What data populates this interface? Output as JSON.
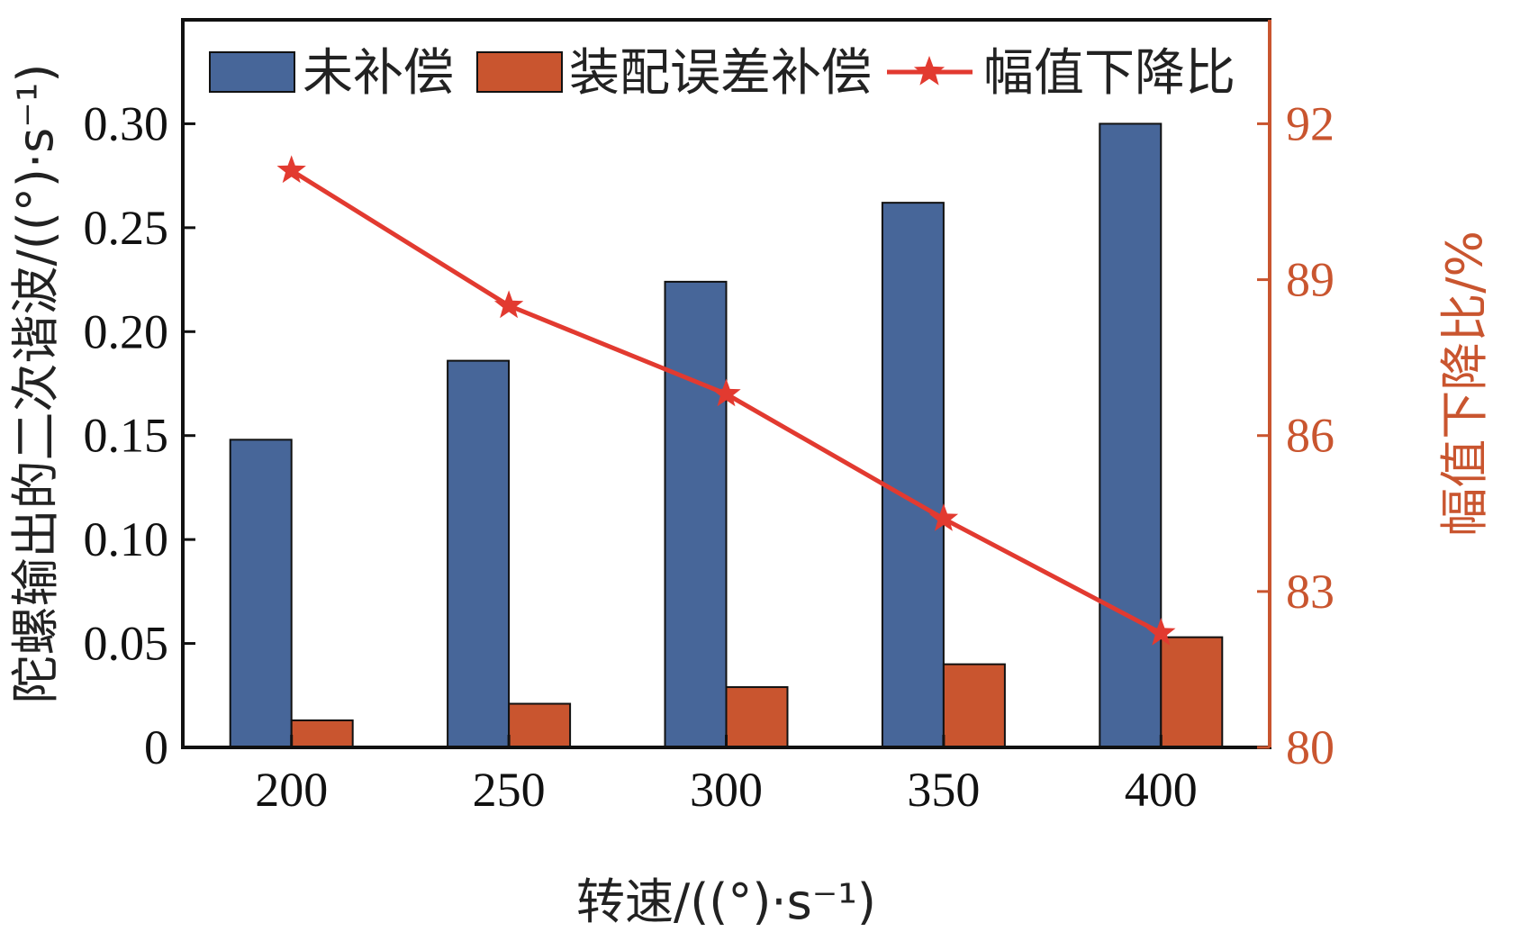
{
  "chart_data": {
    "type": "bar",
    "xlabel": "转速/((°)·s⁻¹)",
    "ylabel": "陀螺输出的二次谐波/((°)·s⁻¹)",
    "y2label": "幅值下降比/%",
    "categories": [
      "200",
      "250",
      "300",
      "350",
      "400"
    ],
    "ylim": [
      0,
      0.35
    ],
    "yticks": [
      "0",
      "0.05",
      "0.10",
      "0.15",
      "0.20",
      "0.25",
      "0.30"
    ],
    "y2lim": [
      80,
      94
    ],
    "y2ticks": [
      "80",
      "83",
      "86",
      "89",
      "92"
    ],
    "legend_position": "top",
    "series": [
      {
        "name": "未补偿",
        "kind": "bar",
        "axis": "left",
        "color": "#476699",
        "values": [
          0.148,
          0.186,
          0.224,
          0.262,
          0.3
        ]
      },
      {
        "name": "装配误差补偿",
        "kind": "bar",
        "axis": "left",
        "color": "#c9552f",
        "values": [
          0.013,
          0.021,
          0.029,
          0.04,
          0.053
        ]
      },
      {
        "name": "幅值下降比",
        "kind": "line",
        "axis": "right",
        "color": "#e23a30",
        "marker": "star",
        "values": [
          91.1,
          88.5,
          86.8,
          84.4,
          82.2
        ]
      }
    ]
  }
}
